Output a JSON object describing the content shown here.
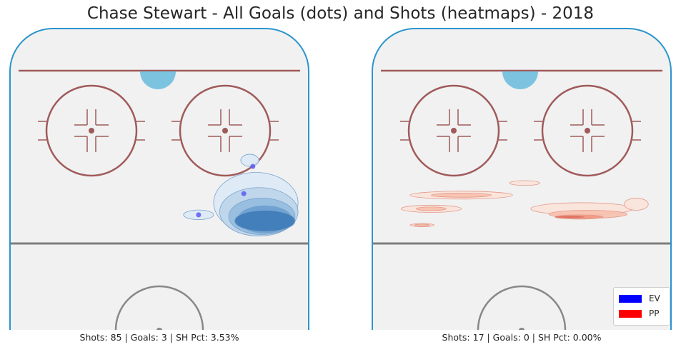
{
  "title": "Chase Stewart - All Goals (dots) and Shots (heatmaps) - 2018",
  "legend": [
    {
      "label": "EV",
      "color": "#0000ff"
    },
    {
      "label": "PP",
      "color": "#ff0000"
    }
  ],
  "colors": {
    "ice": "#f1f1f1",
    "boards": "#2b95cc",
    "goal_line": "#a05a5a",
    "faceoff": "#a05a5a",
    "blue_line": "#7d7d7d",
    "crease": "#7cc3e0",
    "ev_goal_dot": "#5a5af5"
  },
  "chart_data": [
    {
      "type": "heatmap",
      "strength": "EV",
      "caption": "Shots: 85 | Goals: 3 | SH Pct: 3.53%",
      "shots": 85,
      "goals": 3,
      "sh_pct": "3.53%",
      "goal_dots": [
        {
          "x": 0.81,
          "y": 0.46
        },
        {
          "x": 0.78,
          "y": 0.55
        },
        {
          "x": 0.63,
          "y": 0.62
        }
      ],
      "shot_density": [
        {
          "x": 0.85,
          "y": 0.64,
          "rx": 0.1,
          "ry": 0.035,
          "level": 5
        },
        {
          "x": 0.85,
          "y": 0.635,
          "rx": 0.09,
          "ry": 0.045,
          "level": 4
        },
        {
          "x": 0.84,
          "y": 0.625,
          "rx": 0.11,
          "ry": 0.06,
          "level": 3
        },
        {
          "x": 0.83,
          "y": 0.61,
          "rx": 0.13,
          "ry": 0.08,
          "level": 2
        },
        {
          "x": 0.82,
          "y": 0.58,
          "rx": 0.14,
          "ry": 0.1,
          "level": 1
        },
        {
          "x": 0.8,
          "y": 0.44,
          "rx": 0.03,
          "ry": 0.02,
          "level": 1
        },
        {
          "x": 0.63,
          "y": 0.62,
          "rx": 0.05,
          "ry": 0.016,
          "level": 1
        }
      ]
    },
    {
      "type": "heatmap",
      "strength": "PP",
      "caption": "Shots: 17 | Goals: 0 | SH Pct: 0.00%",
      "shots": 17,
      "goals": 0,
      "sh_pct": "0.00%",
      "goal_dots": [],
      "shot_density": [
        {
          "x": 0.3,
          "y": 0.555,
          "rx": 0.17,
          "ry": 0.013,
          "level": 1
        },
        {
          "x": 0.3,
          "y": 0.555,
          "rx": 0.1,
          "ry": 0.007,
          "level": 2
        },
        {
          "x": 0.51,
          "y": 0.515,
          "rx": 0.05,
          "ry": 0.008,
          "level": 1
        },
        {
          "x": 0.7,
          "y": 0.6,
          "rx": 0.17,
          "ry": 0.02,
          "level": 1
        },
        {
          "x": 0.72,
          "y": 0.618,
          "rx": 0.13,
          "ry": 0.013,
          "level": 2
        },
        {
          "x": 0.69,
          "y": 0.627,
          "rx": 0.08,
          "ry": 0.007,
          "level": 3
        },
        {
          "x": 0.66,
          "y": 0.627,
          "rx": 0.05,
          "ry": 0.004,
          "level": 4
        },
        {
          "x": 0.2,
          "y": 0.6,
          "rx": 0.1,
          "ry": 0.012,
          "level": 1
        },
        {
          "x": 0.2,
          "y": 0.6,
          "rx": 0.05,
          "ry": 0.006,
          "level": 2
        },
        {
          "x": 0.88,
          "y": 0.585,
          "rx": 0.04,
          "ry": 0.02,
          "level": 1
        },
        {
          "x": 0.17,
          "y": 0.654,
          "rx": 0.04,
          "ry": 0.005,
          "level": 1
        },
        {
          "x": 0.17,
          "y": 0.654,
          "rx": 0.025,
          "ry": 0.003,
          "level": 2
        }
      ]
    }
  ]
}
